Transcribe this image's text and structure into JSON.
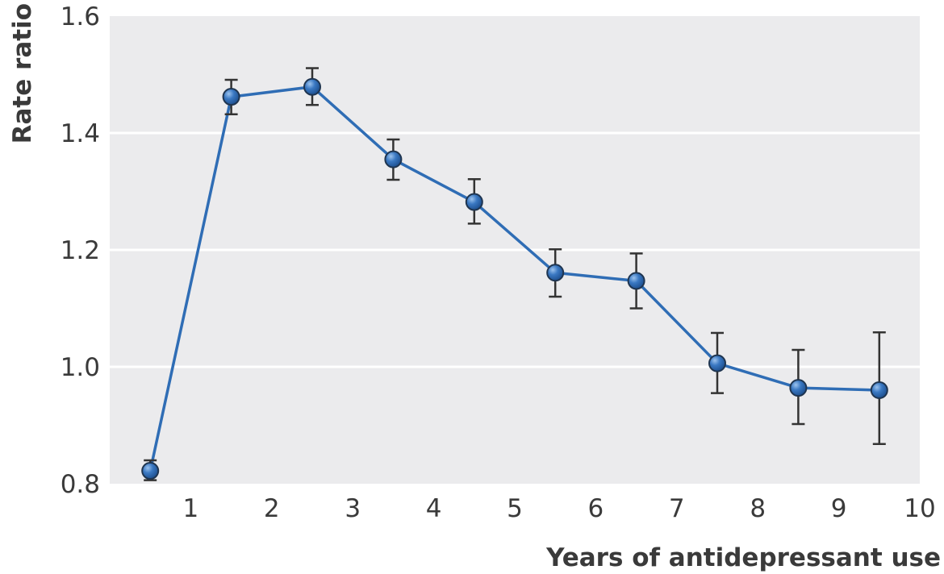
{
  "chart_data": {
    "type": "line",
    "title": "",
    "xlabel": "Years of antidepressant use",
    "ylabel": "Rate ratio",
    "xlim": [
      0,
      10
    ],
    "ylim": [
      0.8,
      1.6
    ],
    "xticks": [
      1,
      2,
      3,
      4,
      5,
      6,
      7,
      8,
      9,
      10
    ],
    "yticks": [
      0.8,
      1.0,
      1.2,
      1.4,
      1.6
    ],
    "ytick_labels": [
      "0.8",
      "1.0",
      "1.2",
      "1.4",
      "1.6"
    ],
    "grid": "horizontal",
    "series": [
      {
        "x": [
          0.5,
          1.5,
          2.5,
          3.5,
          4.5,
          5.5,
          6.5,
          7.5,
          8.5,
          9.5
        ],
        "y": [
          0.822,
          1.462,
          1.479,
          1.355,
          1.282,
          1.161,
          1.147,
          1.006,
          0.964,
          0.96
        ],
        "err_low": [
          0.806,
          1.432,
          1.448,
          1.32,
          1.245,
          1.12,
          1.1,
          0.955,
          0.902,
          0.868
        ],
        "err_high": [
          0.84,
          1.491,
          1.511,
          1.389,
          1.321,
          1.201,
          1.194,
          1.058,
          1.029,
          1.059
        ]
      }
    ],
    "colors": {
      "line": "#2f6db5",
      "marker": "#3a78c2",
      "marker_edge": "#1f3550",
      "errorbar": "#333333",
      "plot_bg": "#ebebed",
      "grid": "#ffffff",
      "text": "#3a3a3a"
    }
  }
}
